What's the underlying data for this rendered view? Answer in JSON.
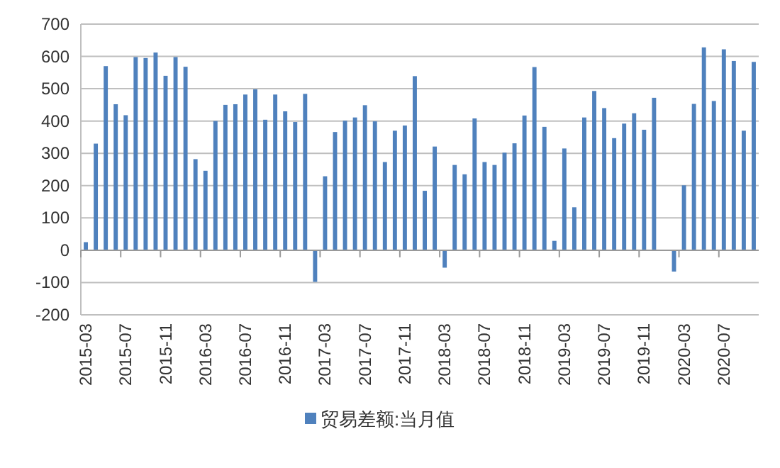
{
  "chart_data": {
    "type": "bar",
    "categories": [
      "2015-03",
      null,
      null,
      null,
      "2015-07",
      null,
      null,
      null,
      "2015-11",
      null,
      null,
      null,
      "2016-03",
      null,
      null,
      null,
      "2016-07",
      null,
      null,
      null,
      "2016-11",
      null,
      null,
      null,
      "2017-03",
      null,
      null,
      null,
      "2017-07",
      null,
      null,
      null,
      "2017-11",
      null,
      null,
      null,
      "2018-03",
      null,
      null,
      null,
      "2018-07",
      null,
      null,
      null,
      "2018-11",
      null,
      null,
      null,
      "2019-03",
      null,
      null,
      null,
      "2019-07",
      null,
      null,
      null,
      "2019-11",
      null,
      null,
      null,
      "2020-03",
      null,
      null,
      null,
      "2020-07",
      null,
      null,
      null
    ],
    "series": [
      {
        "name": "贸易差额:当月值",
        "color": "#4f81bd",
        "values": [
          25,
          330,
          570,
          452,
          418,
          598,
          595,
          612,
          540,
          598,
          568,
          282,
          246,
          400,
          450,
          452,
          482,
          498,
          404,
          482,
          430,
          397,
          484,
          -98,
          229,
          366,
          401,
          411,
          449,
          399,
          273,
          370,
          386,
          539,
          184,
          321,
          -54,
          264,
          235,
          408,
          273,
          264,
          302,
          331,
          417,
          567,
          382,
          29,
          315,
          133,
          411,
          493,
          440,
          347,
          392,
          424,
          373,
          472,
          null,
          -66,
          201,
          453,
          628,
          462,
          622,
          586,
          370,
          583
        ]
      }
    ],
    "ylim": [
      -200,
      700
    ],
    "yticks": [
      -200,
      -100,
      0,
      100,
      200,
      300,
      400,
      500,
      600,
      700
    ],
    "grid": "y",
    "legend": "bottom"
  }
}
